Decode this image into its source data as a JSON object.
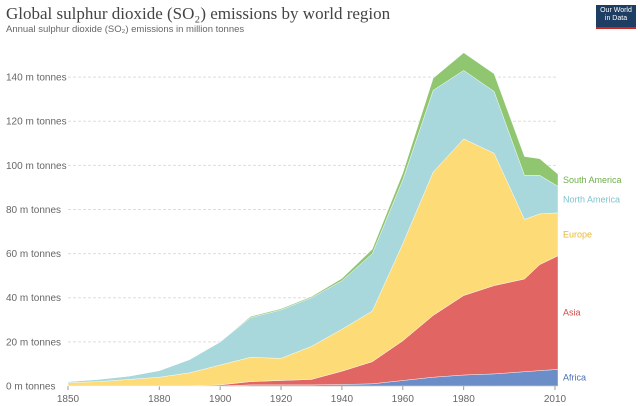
{
  "title": "Global sulphur dioxide (SO₂) emissions by world region",
  "subtitle": "Annual sulphur dioxide (SO₂) emissions in million tonnes",
  "logo": {
    "line1": "Our World",
    "line2": "in Data"
  },
  "colors": {
    "Africa": "#6b8ec9",
    "Asia": "#e06563",
    "Europe": "#fddc78",
    "North America": "#a8d8dc",
    "South America": "#90c66f",
    "Africa_label": "#4a6fb3",
    "Asia_label": "#d14a48",
    "Europe_label": "#e8b733",
    "North America_label": "#7ec5cc",
    "South America_label": "#6fb04a"
  },
  "chart_data": {
    "type": "area",
    "stacked": true,
    "title": "Global sulphur dioxide (SO₂) emissions by world region",
    "subtitle": "Annual sulphur dioxide (SO₂) emissions in million tonnes",
    "x": [
      1850,
      1860,
      1870,
      1880,
      1890,
      1900,
      1910,
      1920,
      1930,
      1940,
      1950,
      1960,
      1970,
      1980,
      1990,
      2000,
      2005,
      2011
    ],
    "series": [
      {
        "name": "Africa",
        "values": [
          0,
          0,
          0,
          0,
          0,
          0,
          0.5,
          0.5,
          0.5,
          0.7,
          1,
          2.5,
          4,
          5,
          5.5,
          6.5,
          7,
          7.5
        ]
      },
      {
        "name": "Asia",
        "values": [
          0,
          0,
          0,
          0,
          0,
          0.5,
          1.5,
          2,
          2.5,
          6,
          10,
          18,
          28,
          36,
          40,
          42,
          48,
          51.5
        ]
      },
      {
        "name": "Europe",
        "values": [
          1.5,
          2,
          3,
          4,
          6,
          9,
          11,
          10,
          15,
          19,
          23,
          44,
          65,
          71,
          60,
          27,
          23,
          19.5
        ]
      },
      {
        "name": "North America",
        "values": [
          0.5,
          1,
          1.5,
          3,
          6,
          10.5,
          18,
          22,
          22,
          22,
          26,
          29,
          37,
          31,
          28,
          20,
          17.5,
          12
        ]
      },
      {
        "name": "South America",
        "values": [
          0,
          0,
          0,
          0,
          0,
          0,
          0.5,
          0.5,
          0.5,
          1,
          2,
          3,
          5.5,
          8,
          8,
          8.5,
          7.5,
          5.5
        ]
      }
    ],
    "y_ticks": [
      "0 m tonnes",
      "20 m tonnes",
      "40 m tonnes",
      "60 m tonnes",
      "80 m tonnes",
      "100 m tonnes",
      "120 m tonnes",
      "140 m tonnes"
    ],
    "x_ticks": [
      "1850",
      "1880",
      "1900",
      "1920",
      "1940",
      "1960",
      "1980",
      "2010"
    ],
    "ylim": [
      0,
      150
    ],
    "xlim": [
      1850,
      2011
    ],
    "grid": "horizontal dashed",
    "legend": "series labels at right end of areas"
  }
}
